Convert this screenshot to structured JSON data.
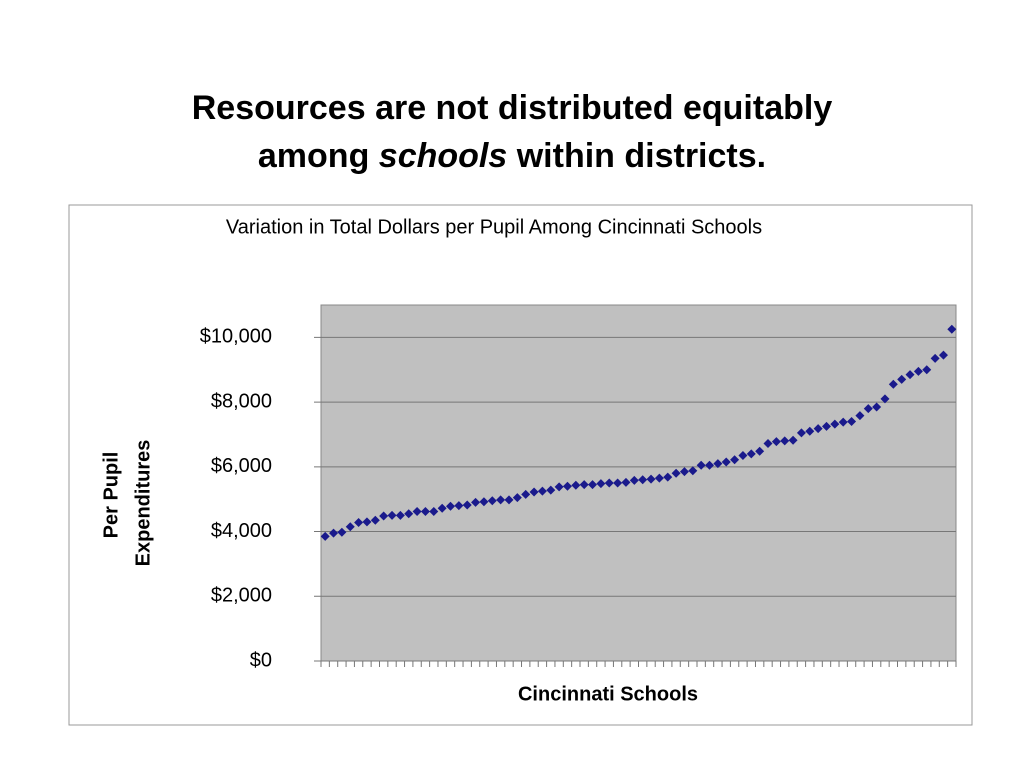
{
  "slide": {
    "title": {
      "line1": "Resources are not distributed equitably",
      "line2_start": "among",
      "line2_emphasis": "schools",
      "line2_end": "within districts."
    }
  },
  "chart_data": {
    "type": "line",
    "marker": "diamond",
    "line": false,
    "title": "Variation in Total Dollars per Pupil Among Cincinnati Schools",
    "x_label": "Cincinnati Schools",
    "y_label": [
      "Per Pupil",
      "Expenditures"
    ],
    "categories": [
      null,
      null,
      null,
      null,
      null,
      null,
      null,
      null,
      null,
      null,
      null,
      null,
      null,
      null,
      null,
      null,
      null,
      null,
      null,
      null,
      null,
      null,
      null,
      null,
      null,
      null,
      null,
      null,
      null,
      null,
      null,
      null,
      null,
      null,
      null,
      null,
      null,
      null,
      null,
      null,
      null,
      null,
      null,
      null,
      null,
      null,
      null,
      null,
      null,
      null,
      null,
      null,
      null,
      null,
      null,
      null,
      null,
      null,
      null,
      null,
      null,
      null,
      null,
      null,
      null,
      null,
      null,
      null,
      null,
      null,
      null,
      null,
      null,
      null,
      null,
      null
    ],
    "series": [
      {
        "color": "#1a1a8c",
        "values": [
          3850,
          3950,
          3980,
          4150,
          4280,
          4300,
          4350,
          4480,
          4500,
          4500,
          4550,
          4620,
          4620,
          4620,
          4720,
          4780,
          4800,
          4820,
          4900,
          4920,
          4950,
          4980,
          4980,
          5050,
          5150,
          5220,
          5250,
          5280,
          5380,
          5400,
          5430,
          5450,
          5450,
          5480,
          5500,
          5500,
          5520,
          5580,
          5600,
          5620,
          5650,
          5680,
          5800,
          5850,
          5880,
          6050,
          6050,
          6100,
          6150,
          6220,
          6350,
          6400,
          6480,
          6720,
          6780,
          6800,
          6820,
          7050,
          7100,
          7180,
          7250,
          7320,
          7380,
          7400,
          7580,
          7800,
          7850,
          8100,
          8550,
          8700,
          8850,
          8950,
          9000,
          9350,
          9450,
          10250
        ]
      }
    ],
    "ylim": [
      0,
      11000
    ],
    "yticks": [
      {
        "value": 0,
        "label": "$0"
      },
      {
        "value": 2000,
        "label": "$2,000"
      },
      {
        "value": 4000,
        "label": "$4,000"
      },
      {
        "value": 6000,
        "label": "$6,000"
      },
      {
        "value": 8000,
        "label": "$8,000"
      },
      {
        "value": 10000,
        "label": "$10,000"
      }
    ],
    "grid": true,
    "plot_background": "#c0c0c0"
  }
}
